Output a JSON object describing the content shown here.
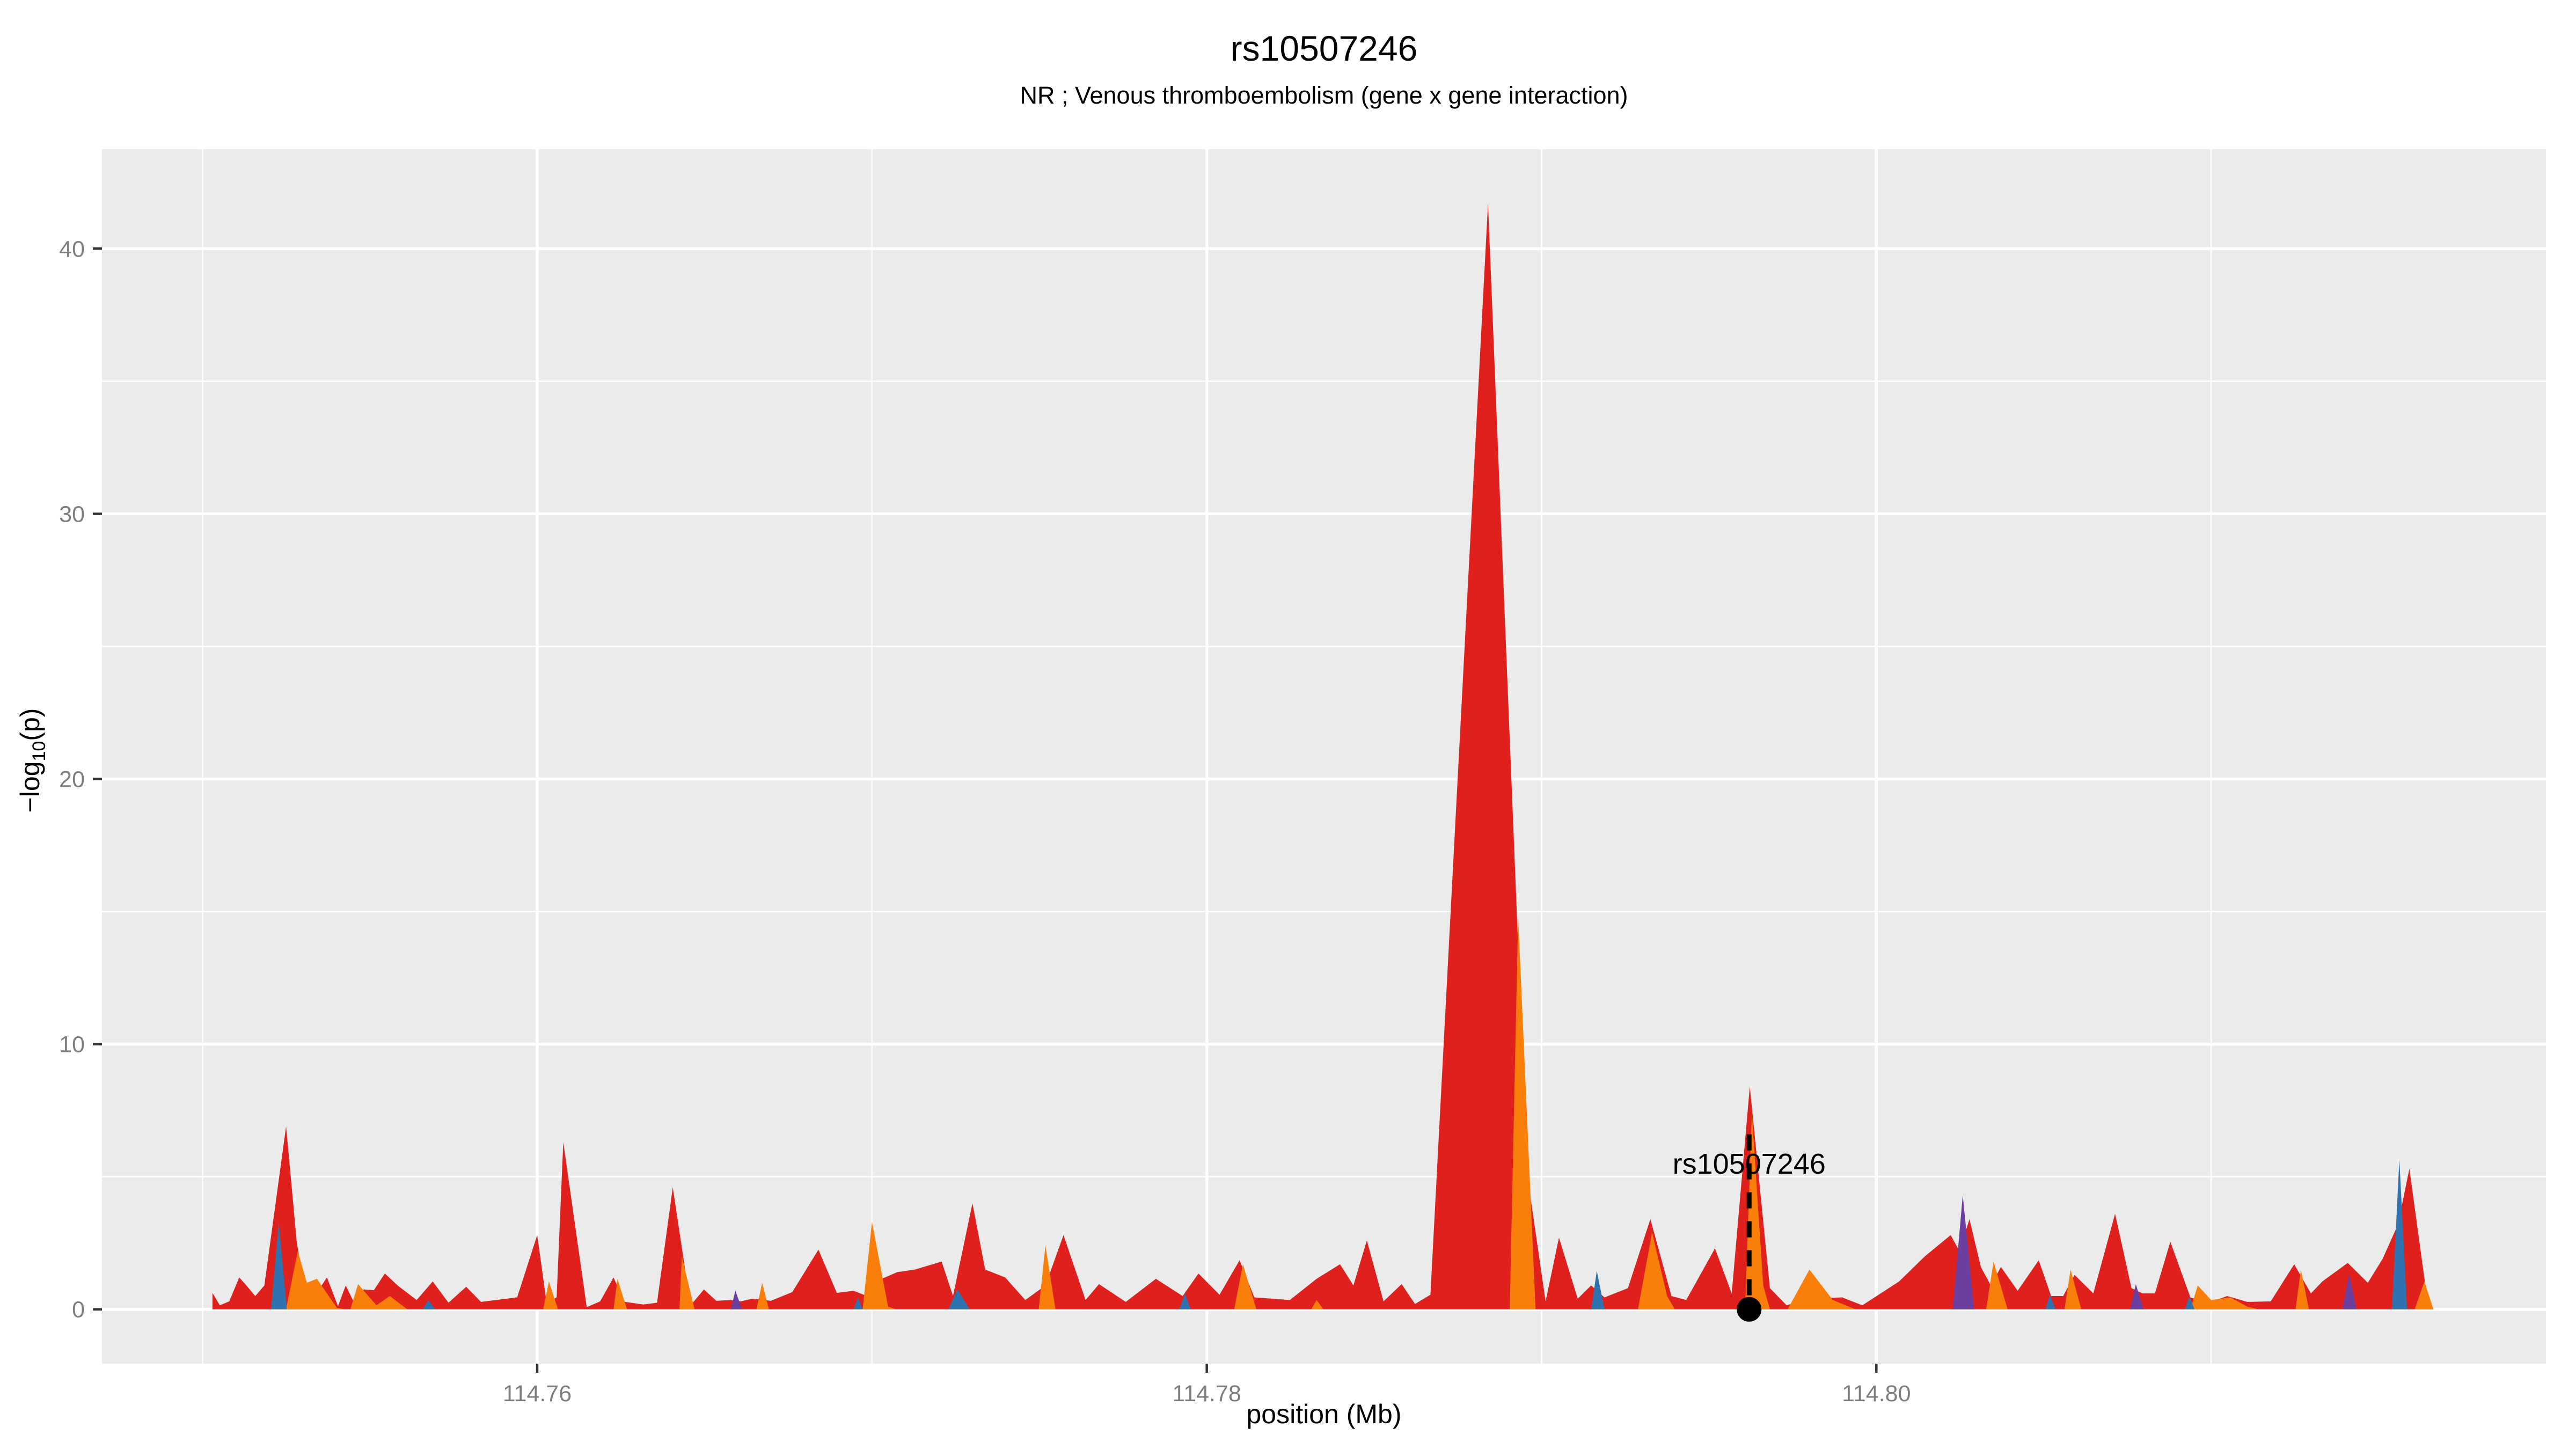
{
  "title": "rs10507246",
  "subtitle": "NR ; Venous thromboembolism (gene x gene interaction)",
  "axis": {
    "x_title": "position (Mb)",
    "y_title_pre": "−log",
    "y_title_sub": "10",
    "y_title_post": "(p)",
    "tick_label_color": "#7e7e7e",
    "tick_mark_color": "#333333"
  },
  "chart_data": {
    "type": "area",
    "title": "rs10507246",
    "subtitle": "NR ; Venous thromboembolism (gene x gene interaction)",
    "xlabel": "position (Mb)",
    "ylabel": "-log10(p)",
    "xlim": [
      114.747,
      114.82
    ],
    "ylim": [
      -2.05,
      43.75
    ],
    "x_ticks": [
      114.76,
      114.78,
      114.8
    ],
    "x_tick_labels": [
      "114.76",
      "114.78",
      "114.80"
    ],
    "x_minor_ticks": [
      114.75,
      114.77,
      114.79,
      114.81
    ],
    "y_ticks": [
      0,
      10,
      20,
      30,
      40
    ],
    "y_tick_labels": [
      "0",
      "10",
      "20",
      "30",
      "40"
    ],
    "y_minor_ticks": [
      5,
      15,
      25,
      35
    ],
    "panel_bg": "#EBEBEB",
    "grid_color": "#FFFFFF",
    "legend": "none",
    "annotation": {
      "label": "rs10507246",
      "x": 114.7962,
      "label_center_y": 5.5,
      "dash_top_y": 6.6,
      "dash_bottom_y": 0.18,
      "point_y": 0,
      "color": "#000000"
    },
    "series": [
      {
        "name": "red",
        "color": "#E0201C",
        "points": [
          [
            114.7503,
            0.62
          ],
          [
            114.75052,
            0.15
          ],
          [
            114.7508,
            0.3
          ],
          [
            114.7511,
            1.2
          ],
          [
            114.75128,
            0.95
          ],
          [
            114.75158,
            0.5
          ],
          [
            114.75185,
            0.9
          ],
          [
            114.7525,
            6.9
          ],
          [
            114.75282,
            2.5
          ],
          [
            114.7531,
            0.55
          ],
          [
            114.7534,
            0.6
          ],
          [
            114.75372,
            1.2
          ],
          [
            114.75405,
            0.12
          ],
          [
            114.75428,
            0.9
          ],
          [
            114.75452,
            0.28
          ],
          [
            114.75482,
            0.75
          ],
          [
            114.75512,
            0.72
          ],
          [
            114.75545,
            1.35
          ],
          [
            114.75585,
            0.88
          ],
          [
            114.7564,
            0.35
          ],
          [
            114.75688,
            1.05
          ],
          [
            114.75735,
            0.25
          ],
          [
            114.75788,
            0.85
          ],
          [
            114.75832,
            0.28
          ],
          [
            114.7594,
            0.45
          ],
          [
            114.76,
            2.8
          ],
          [
            114.76028,
            0.25
          ],
          [
            114.76058,
            0.45
          ],
          [
            114.76078,
            6.3
          ],
          [
            114.76148,
            0.08
          ],
          [
            114.76188,
            0.3
          ],
          [
            114.76228,
            1.2
          ],
          [
            114.76262,
            0.28
          ],
          [
            114.76318,
            0.18
          ],
          [
            114.76358,
            0.25
          ],
          [
            114.76405,
            4.6
          ],
          [
            114.76458,
            0.15
          ],
          [
            114.76498,
            0.75
          ],
          [
            114.76535,
            0.32
          ],
          [
            114.76578,
            0.35
          ],
          [
            114.76608,
            0.3
          ],
          [
            114.76642,
            0.4
          ],
          [
            114.76698,
            0.32
          ],
          [
            114.76762,
            0.65
          ],
          [
            114.7684,
            2.25
          ],
          [
            114.76895,
            0.62
          ],
          [
            114.76945,
            0.7
          ],
          [
            114.76985,
            0.5
          ],
          [
            114.77002,
            1.0
          ],
          [
            114.77075,
            1.4
          ],
          [
            114.77128,
            1.5
          ],
          [
            114.77208,
            1.8
          ],
          [
            114.77242,
            0.5
          ],
          [
            114.773,
            4.0
          ],
          [
            114.77338,
            1.5
          ],
          [
            114.77398,
            1.2
          ],
          [
            114.77458,
            0.35
          ],
          [
            114.77518,
            0.9
          ],
          [
            114.77572,
            2.8
          ],
          [
            114.77638,
            0.35
          ],
          [
            114.77678,
            0.95
          ],
          [
            114.77758,
            0.28
          ],
          [
            114.77848,
            1.15
          ],
          [
            114.77928,
            0.5
          ],
          [
            114.77975,
            1.35
          ],
          [
            114.78038,
            0.55
          ],
          [
            114.78098,
            1.85
          ],
          [
            114.78142,
            0.45
          ],
          [
            114.78248,
            0.35
          ],
          [
            114.78328,
            1.15
          ],
          [
            114.78398,
            1.7
          ],
          [
            114.78438,
            0.9
          ],
          [
            114.78478,
            2.6
          ],
          [
            114.78528,
            0.3
          ],
          [
            114.78582,
            0.95
          ],
          [
            114.78622,
            0.2
          ],
          [
            114.78668,
            0.55
          ],
          [
            114.7884,
            41.7
          ],
          [
            114.78958,
            5.0
          ],
          [
            114.79012,
            0.3
          ],
          [
            114.79052,
            2.7
          ],
          [
            114.79108,
            0.4
          ],
          [
            114.79148,
            0.9
          ],
          [
            114.79188,
            0.45
          ],
          [
            114.79258,
            0.8
          ],
          [
            114.79325,
            3.4
          ],
          [
            114.79388,
            0.5
          ],
          [
            114.79432,
            0.35
          ],
          [
            114.79518,
            2.3
          ],
          [
            114.79568,
            0.6
          ],
          [
            114.79622,
            8.4
          ],
          [
            114.79682,
            0.8
          ],
          [
            114.79732,
            0.15
          ],
          [
            114.79795,
            0.4
          ],
          [
            114.79898,
            0.45
          ],
          [
            114.79958,
            0.15
          ],
          [
            114.80068,
            1.05
          ],
          [
            114.80145,
            2.0
          ],
          [
            114.80222,
            2.8
          ],
          [
            114.80248,
            2.2
          ],
          [
            114.80278,
            3.4
          ],
          [
            114.80312,
            1.6
          ],
          [
            114.80342,
            0.9
          ],
          [
            114.80372,
            1.6
          ],
          [
            114.80422,
            0.7
          ],
          [
            114.80485,
            1.85
          ],
          [
            114.80522,
            0.5
          ],
          [
            114.80558,
            0.5
          ],
          [
            114.80592,
            1.3
          ],
          [
            114.80648,
            0.6
          ],
          [
            114.80713,
            3.6
          ],
          [
            114.80762,
            0.8
          ],
          [
            114.80795,
            0.6
          ],
          [
            114.80832,
            0.6
          ],
          [
            114.80878,
            2.55
          ],
          [
            114.80938,
            0.45
          ],
          [
            114.80992,
            0.25
          ],
          [
            114.81048,
            0.5
          ],
          [
            114.81108,
            0.28
          ],
          [
            114.81178,
            0.3
          ],
          [
            114.81248,
            1.7
          ],
          [
            114.81298,
            0.6
          ],
          [
            114.81332,
            1.05
          ],
          [
            114.81408,
            1.75
          ],
          [
            114.81468,
            1.0
          ],
          [
            114.81512,
            1.9
          ],
          [
            114.81558,
            3.2
          ],
          [
            114.81592,
            5.3
          ],
          [
            114.81642,
            0.7
          ],
          [
            114.81664,
            0.0
          ]
        ]
      },
      {
        "name": "orange",
        "color": "#FA7E0A",
        "points": [
          [
            114.7525,
            0.0
          ],
          [
            114.75285,
            2.2
          ],
          [
            114.75312,
            1.0
          ],
          [
            114.75342,
            1.15
          ],
          [
            114.75402,
            0.05
          ],
          [
            114.75428,
            0.0
          ],
          [
            114.75442,
            0.0
          ],
          [
            114.75465,
            0.95
          ],
          [
            114.7552,
            0.15
          ],
          [
            114.7556,
            0.5
          ],
          [
            114.75612,
            0.0
          ],
          [
            114.76018,
            0.0
          ],
          [
            114.76035,
            1.05
          ],
          [
            114.76062,
            0.0
          ],
          [
            114.76228,
            0.0
          ],
          [
            114.7624,
            1.15
          ],
          [
            114.76268,
            0.0
          ],
          [
            114.76425,
            0.0
          ],
          [
            114.76432,
            2.0
          ],
          [
            114.7647,
            0.0
          ],
          [
            114.76655,
            0.0
          ],
          [
            114.76672,
            1.0
          ],
          [
            114.76692,
            0.0
          ],
          [
            114.76972,
            0.0
          ],
          [
            114.77,
            3.3
          ],
          [
            114.77048,
            0.1
          ],
          [
            114.77072,
            0.0
          ],
          [
            114.77498,
            0.0
          ],
          [
            114.77518,
            2.4
          ],
          [
            114.77548,
            0.0
          ],
          [
            114.78082,
            0.0
          ],
          [
            114.78108,
            1.7
          ],
          [
            114.78148,
            0.0
          ],
          [
            114.78312,
            0.0
          ],
          [
            114.78328,
            0.35
          ],
          [
            114.78348,
            0.0
          ],
          [
            114.78905,
            0.0
          ],
          [
            114.7893,
            14.8
          ],
          [
            114.78982,
            0.0
          ],
          [
            114.79288,
            0.0
          ],
          [
            114.7933,
            2.9
          ],
          [
            114.79375,
            0.5
          ],
          [
            114.79398,
            0.0
          ],
          [
            114.79608,
            0.0
          ],
          [
            114.79628,
            7.4
          ],
          [
            114.79662,
            0.9
          ],
          [
            114.79682,
            0.0
          ],
          [
            114.79735,
            0.0
          ],
          [
            114.798,
            1.5
          ],
          [
            114.7987,
            0.35
          ],
          [
            114.79918,
            0.1
          ],
          [
            114.79938,
            0.0
          ],
          [
            114.80328,
            0.0
          ],
          [
            114.8035,
            1.8
          ],
          [
            114.80392,
            0.0
          ],
          [
            114.80562,
            0.0
          ],
          [
            114.8058,
            1.5
          ],
          [
            114.80612,
            0.0
          ],
          [
            114.80938,
            0.0
          ],
          [
            114.8096,
            0.9
          ],
          [
            114.81,
            0.35
          ],
          [
            114.81058,
            0.45
          ],
          [
            114.81108,
            0.1
          ],
          [
            114.81142,
            0.0
          ],
          [
            114.81252,
            0.0
          ],
          [
            114.81268,
            1.5
          ],
          [
            114.81292,
            0.0
          ],
          [
            114.81608,
            0.0
          ],
          [
            114.81637,
            1.05
          ],
          [
            114.81664,
            0.0
          ]
        ]
      },
      {
        "name": "blue",
        "color": "#2E73B0",
        "points": [
          [
            114.75205,
            0.0
          ],
          [
            114.75228,
            3.3
          ],
          [
            114.75252,
            0.0
          ],
          [
            114.75658,
            0.0
          ],
          [
            114.75675,
            0.35
          ],
          [
            114.75695,
            0.0
          ],
          [
            114.76945,
            0.0
          ],
          [
            114.76958,
            0.45
          ],
          [
            114.76972,
            0.0
          ],
          [
            114.77228,
            0.0
          ],
          [
            114.77255,
            0.75
          ],
          [
            114.77292,
            0.0
          ],
          [
            114.77918,
            0.0
          ],
          [
            114.77935,
            0.6
          ],
          [
            114.77952,
            0.0
          ],
          [
            114.79148,
            0.0
          ],
          [
            114.79165,
            1.45
          ],
          [
            114.79188,
            0.0
          ],
          [
            114.80505,
            0.0
          ],
          [
            114.80518,
            0.55
          ],
          [
            114.80535,
            0.0
          ],
          [
            114.80922,
            0.0
          ],
          [
            114.80935,
            0.5
          ],
          [
            114.8095,
            0.0
          ],
          [
            114.8154,
            0.0
          ],
          [
            114.81562,
            5.65
          ],
          [
            114.81585,
            0.0
          ]
        ]
      },
      {
        "name": "purple",
        "color": "#6A3FA0",
        "points": [
          [
            114.76578,
            0.0
          ],
          [
            114.76592,
            0.7
          ],
          [
            114.76612,
            0.0
          ],
          [
            114.80228,
            0.0
          ],
          [
            114.80258,
            4.3
          ],
          [
            114.80292,
            0.0
          ],
          [
            114.80758,
            0.0
          ],
          [
            114.80775,
            0.95
          ],
          [
            114.80798,
            0.0
          ],
          [
            114.81392,
            0.0
          ],
          [
            114.81412,
            1.35
          ],
          [
            114.81434,
            0.0
          ]
        ]
      }
    ]
  }
}
